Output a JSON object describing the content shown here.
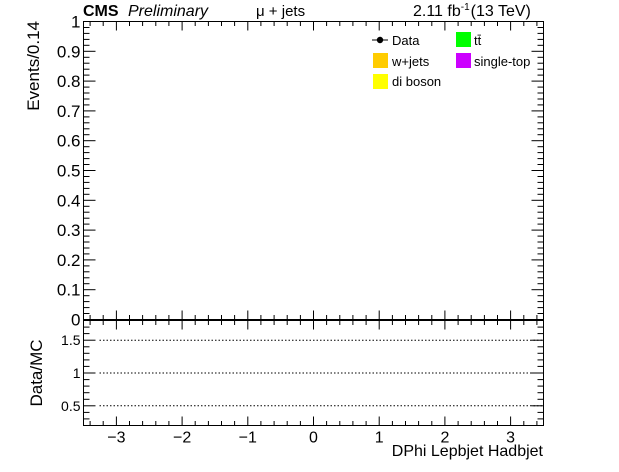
{
  "header": {
    "cms": "CMS",
    "preliminary": "Preliminary",
    "channel": "μ + jets",
    "lumi_value": "2.11 fb",
    "lumi_exp": "-1",
    "energy": "(13 TeV)"
  },
  "legend": {
    "entries": [
      {
        "label": "Data",
        "kind": "marker",
        "color": "#000000"
      },
      {
        "label": "tt̄",
        "kind": "box",
        "color": "#00ff00"
      },
      {
        "label": "w+jets",
        "kind": "box",
        "color": "#ffcc00"
      },
      {
        "label": "single-top",
        "kind": "box",
        "color": "#cc00ff"
      },
      {
        "label": "di boson",
        "kind": "box",
        "color": "#ffff00"
      }
    ]
  },
  "chart_data": [
    {
      "type": "bar",
      "panel": "main",
      "ylabel": "Events/0.14",
      "xlim": [
        -3.5,
        3.5
      ],
      "ylim": [
        0,
        1
      ],
      "yticks": [
        "0",
        "0.1",
        "0.2",
        "0.3",
        "0.4",
        "0.5",
        "0.6",
        "0.7",
        "0.8",
        "0.9",
        "1"
      ],
      "series": []
    },
    {
      "type": "line",
      "panel": "ratio",
      "xlabel": "DPhi Lepbjet Hadbjet",
      "ylabel": "Data/MC",
      "xlim": [
        -3.5,
        3.5
      ],
      "ylim": [
        0.2,
        1.8
      ],
      "xticks": [
        "−3",
        "−2",
        "−1",
        "0",
        "1",
        "2",
        "3"
      ],
      "yticks": [
        "0.5",
        "1",
        "1.5"
      ],
      "reference_lines": [
        0.5,
        1,
        1.5
      ],
      "series": []
    }
  ]
}
